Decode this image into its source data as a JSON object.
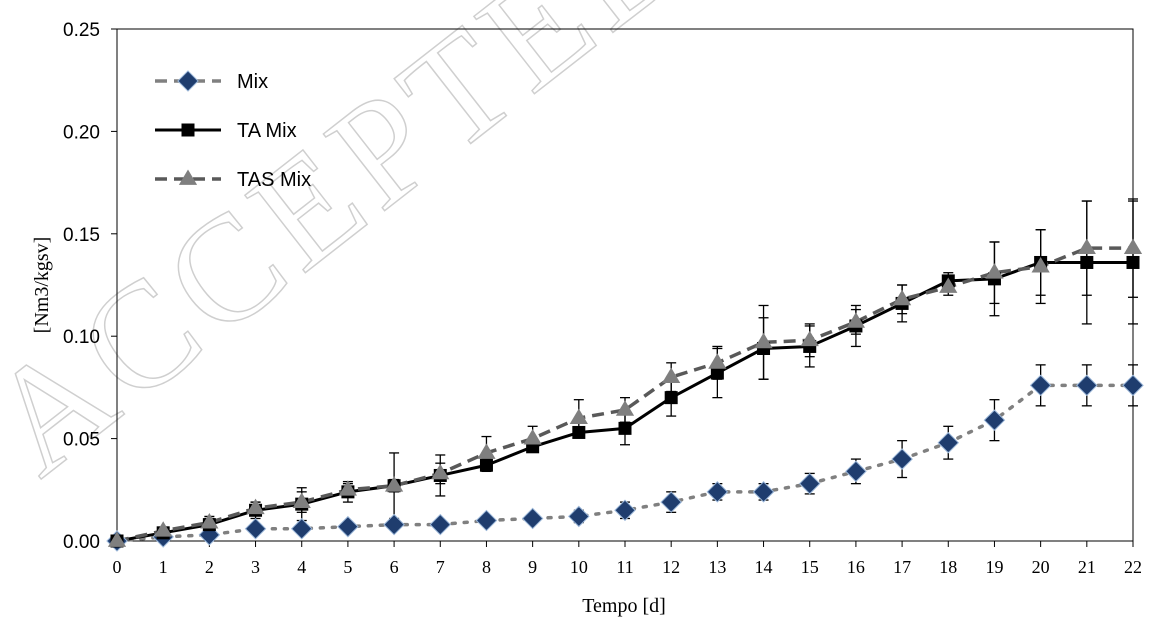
{
  "watermark": "ACCEPTED",
  "chart_data": {
    "type": "line",
    "title": "",
    "xlabel": "Tempo [d]",
    "ylabel": "[Nm3/kgsv]",
    "xlim": [
      0,
      22
    ],
    "ylim": [
      0,
      0.25
    ],
    "x": [
      0,
      1,
      2,
      3,
      4,
      5,
      6,
      7,
      8,
      9,
      10,
      11,
      12,
      13,
      14,
      15,
      16,
      17,
      18,
      19,
      20,
      21,
      22
    ],
    "x_tick_labels": [
      "0",
      "1",
      "2",
      "3",
      "4",
      "5",
      "6",
      "7",
      "8",
      "9",
      "10",
      "11",
      "12",
      "13",
      "14",
      "15",
      "16",
      "17",
      "18",
      "19",
      "20",
      "21",
      "22"
    ],
    "y_tick_labels": [
      "0.00",
      "0.05",
      "0.10",
      "0.15",
      "0.20",
      "0.25"
    ],
    "y_ticks": [
      0,
      0.05,
      0.1,
      0.15,
      0.2,
      0.25
    ],
    "grid": false,
    "legend_position": "top-left",
    "series": [
      {
        "name": "Mix",
        "color": "#808080",
        "marker_fill": "#1f3d6e",
        "marker": "diamond",
        "line_style": "dashed-dotted",
        "values": [
          0.0,
          0.002,
          0.003,
          0.006,
          0.006,
          0.007,
          0.008,
          0.008,
          0.01,
          0.011,
          0.012,
          0.015,
          0.019,
          0.024,
          0.024,
          0.028,
          0.034,
          0.04,
          0.048,
          0.059,
          0.076,
          0.076,
          0.076
        ],
        "errors": [
          0.0,
          0.001,
          0.001,
          0.001,
          0.001,
          0.001,
          0.001,
          0.001,
          0.002,
          0.002,
          0.003,
          0.004,
          0.005,
          0.004,
          0.004,
          0.005,
          0.006,
          0.009,
          0.008,
          0.01,
          0.01,
          0.01,
          0.01
        ]
      },
      {
        "name": "TA Mix",
        "color": "#000000",
        "marker_fill": "#000000",
        "marker": "square",
        "line_style": "solid",
        "values": [
          0.0,
          0.004,
          0.008,
          0.015,
          0.018,
          0.024,
          0.027,
          0.032,
          0.037,
          0.046,
          0.053,
          0.055,
          0.07,
          0.082,
          0.094,
          0.095,
          0.105,
          0.116,
          0.127,
          0.128,
          0.136,
          0.136,
          0.136
        ],
        "errors": [
          0.0,
          0.001,
          0.003,
          0.004,
          0.008,
          0.005,
          0.016,
          0.01,
          0.003,
          0.002,
          0.001,
          0.008,
          0.009,
          0.012,
          0.015,
          0.01,
          0.01,
          0.009,
          0.004,
          0.018,
          0.016,
          0.03,
          0.03
        ]
      },
      {
        "name": "TAS Mix",
        "color": "#595959",
        "marker_fill": "#7f7f7f",
        "marker": "triangle",
        "line_style": "dashed",
        "values": [
          0.0,
          0.005,
          0.009,
          0.016,
          0.019,
          0.025,
          0.027,
          0.033,
          0.043,
          0.05,
          0.06,
          0.064,
          0.08,
          0.087,
          0.097,
          0.098,
          0.107,
          0.118,
          0.124,
          0.131,
          0.134,
          0.143,
          0.143
        ],
        "errors": [
          0.0,
          0.001,
          0.003,
          0.003,
          0.005,
          0.003,
          0.003,
          0.005,
          0.008,
          0.006,
          0.009,
          0.006,
          0.007,
          0.008,
          0.018,
          0.008,
          0.006,
          0.007,
          0.004,
          0.015,
          0.018,
          0.023,
          0.024
        ]
      }
    ]
  }
}
